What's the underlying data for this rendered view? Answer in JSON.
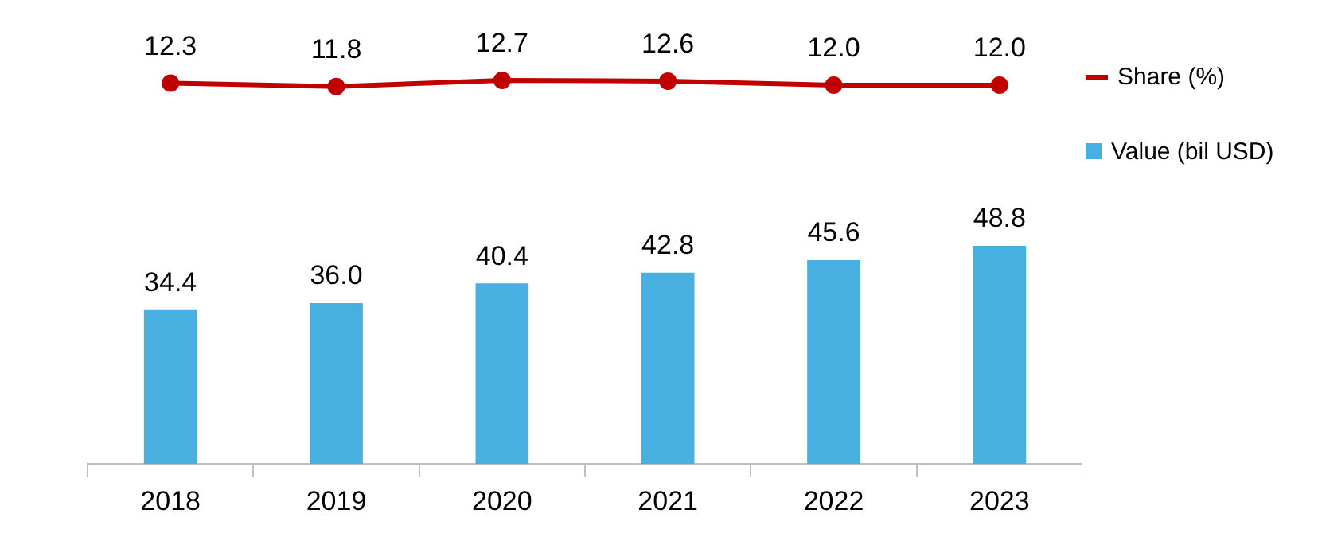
{
  "chart_data": [
    {
      "type": "line",
      "categories": [
        "2018",
        "2019",
        "2020",
        "2021",
        "2022",
        "2023"
      ],
      "tick_labels": false,
      "legend": "right",
      "grid": false,
      "series": [
        {
          "name": "Share (%)",
          "color": "#c00000",
          "marker": "circle",
          "line_style": "solid",
          "values": [
            12.3,
            11.8,
            12.7,
            12.6,
            12.0,
            12.0
          ],
          "value_labels": [
            "12.3",
            "11.8",
            "12.7",
            "12.6",
            "12.0",
            "12.0"
          ]
        }
      ]
    },
    {
      "type": "bar",
      "categories": [
        "2018",
        "2019",
        "2020",
        "2021",
        "2022",
        "2023"
      ],
      "tick_labels": "x",
      "legend": "right",
      "grid": false,
      "series": [
        {
          "name": "Value (bil USD)",
          "color": "#47b0e0",
          "values": [
            34.4,
            36.0,
            40.4,
            42.8,
            45.6,
            48.8
          ],
          "value_labels": [
            "34.4",
            "36.0",
            "40.4",
            "42.8",
            "45.6",
            "48.8"
          ]
        }
      ]
    }
  ]
}
